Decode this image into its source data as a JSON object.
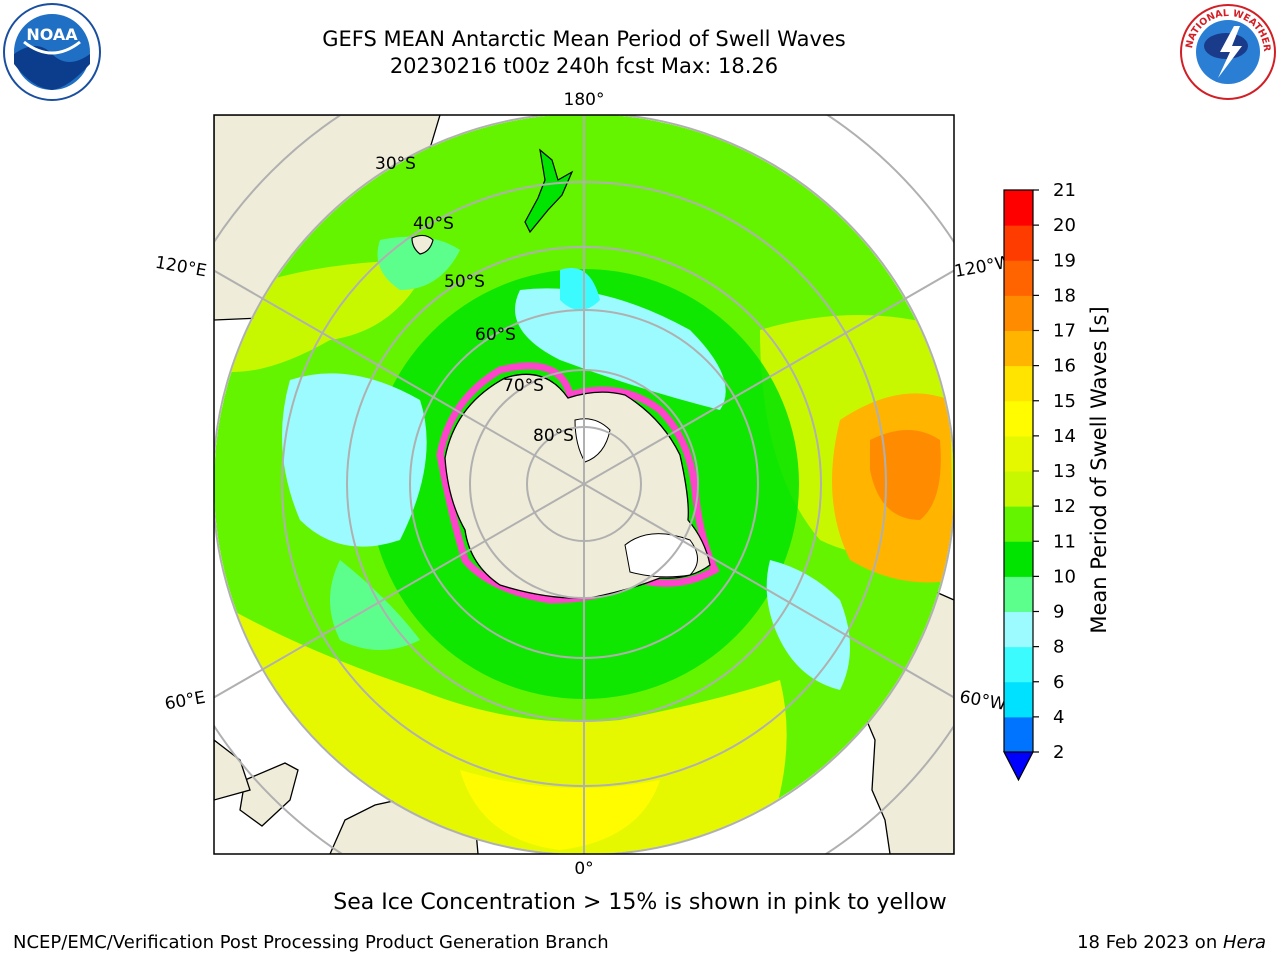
{
  "title": {
    "line1": "GEFS MEAN Antarctic Mean Period of Swell Waves",
    "line2": "20230216 t00z 240h fcst   Max: 18.26"
  },
  "logos": {
    "left": {
      "name": "noaa-logo",
      "text": "NOAA"
    },
    "right": {
      "name": "nws-logo",
      "text": "NATIONAL WEATHER SERVICE"
    }
  },
  "map": {
    "projection": "south-polar-stereographic",
    "longitude_labels": {
      "top": "180°",
      "bottom": "0°",
      "left_upper": "120°E",
      "right_upper": "120°W",
      "left_lower": "60°E",
      "right_lower": "60°W"
    },
    "latitude_labels": [
      "30°S",
      "40°S",
      "50°S",
      "60°S",
      "70°S",
      "80°S"
    ]
  },
  "colorbar": {
    "label": "Mean Period of Swell Waves [s]",
    "ticks": [
      "2",
      "4",
      "6",
      "8",
      "9",
      "10",
      "11",
      "12",
      "13",
      "14",
      "15",
      "16",
      "17",
      "18",
      "19",
      "20",
      "21"
    ],
    "colors": [
      "#0074ff",
      "#00e0ff",
      "#3cfbff",
      "#9cfbff",
      "#5cff8c",
      "#00e400",
      "#64f400",
      "#c8f800",
      "#e6f800",
      "#fffc00",
      "#ffe400",
      "#ffb400",
      "#ff8c00",
      "#ff6400",
      "#ff3c00",
      "#ff0000"
    ],
    "under_color": "#0000ff"
  },
  "caption": "Sea Ice Concentration > 15% is shown in pink to yellow",
  "footer": {
    "left": "NCEP/EMC/Verification Post Processing Product Generation Branch",
    "right_date": "18 Feb 2023 on ",
    "right_host": "Hera"
  }
}
